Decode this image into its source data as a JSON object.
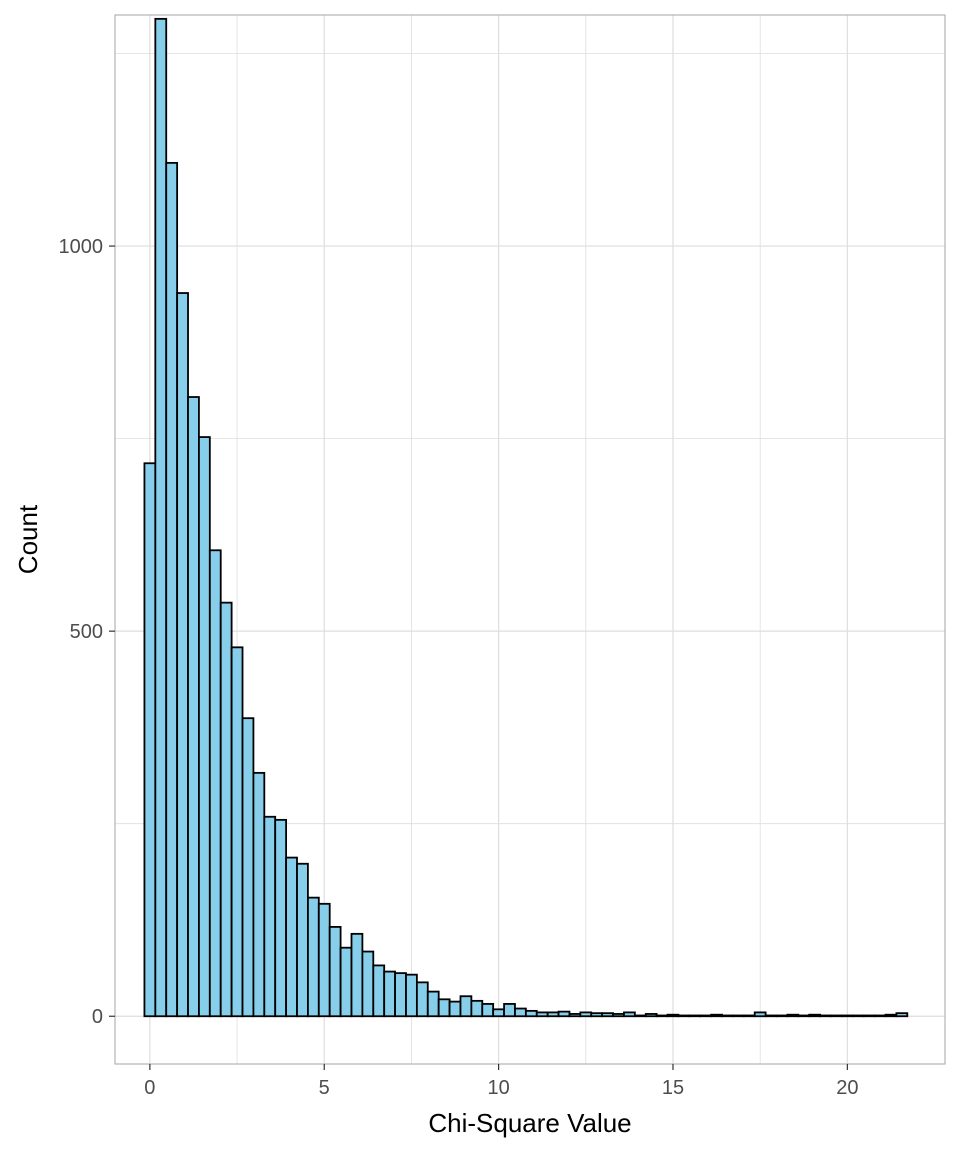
{
  "chart_data": {
    "type": "bar",
    "subtype": "histogram",
    "title": "",
    "xlabel": "Chi-Square Value",
    "ylabel": "Count",
    "xlim": [
      -1,
      22.8
    ],
    "ylim": [
      -62,
      1300
    ],
    "x_ticks": [
      0,
      5,
      10,
      15,
      20
    ],
    "y_ticks": [
      0,
      500,
      1000
    ],
    "x_tick_labels": [
      "0",
      "5",
      "10",
      "15",
      "20"
    ],
    "y_tick_labels": [
      "0",
      "500",
      "1000"
    ],
    "grid": true,
    "bin_width": 0.3125,
    "bin_start": -0.156,
    "values": [
      718,
      1295,
      1108,
      939,
      804,
      752,
      605,
      537,
      479,
      387,
      316,
      259,
      255,
      206,
      198,
      154,
      146,
      116,
      89,
      107,
      84,
      66,
      58,
      56,
      54,
      44,
      32,
      22,
      19,
      26,
      20,
      16,
      9,
      16,
      10,
      7,
      5,
      5,
      6,
      3,
      5,
      4,
      4,
      3,
      5,
      1,
      3,
      1,
      2,
      1,
      1,
      1,
      2,
      1,
      1,
      1,
      5,
      1,
      1,
      2,
      1,
      2,
      1,
      1,
      1,
      1,
      1,
      1,
      2,
      4
    ],
    "colors": {
      "bar_fill": "#87CEEB",
      "bar_stroke": "#000000",
      "grid": "#dedede",
      "panel_border": "#b3b3b3"
    }
  }
}
